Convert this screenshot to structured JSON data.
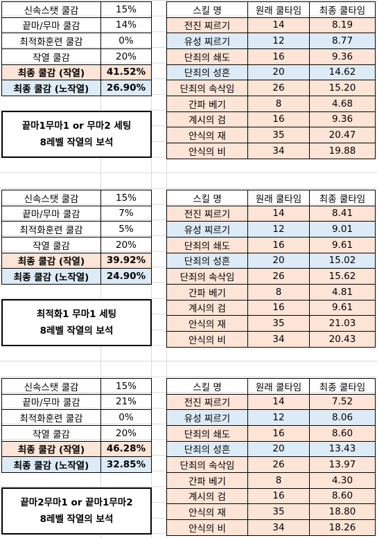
{
  "blocks": [
    {
      "stats": [
        [
          "신속스탯 쿨감",
          "15%"
        ],
        [
          "끝마/무마 쿨감",
          "14%"
        ],
        [
          "최적화훈련 쿨감",
          "0%"
        ],
        [
          "작열 쿨감",
          "20%"
        ],
        [
          "최종 쿨감 (작열)",
          "41.52%"
        ],
        [
          "최종 쿨감 (노작열)",
          "26.90%"
        ]
      ],
      "note": [
        "끝마1무마1 or 무마2 세팅",
        "8레벨 작열의 보석"
      ],
      "skills": {
        "header": [
          "스킬 명",
          "원래 쿨타임",
          "최종 쿨타임"
        ],
        "rows": [
          [
            "전진 찌르기",
            "14",
            "8.19"
          ],
          [
            "유성 찌르기",
            "12",
            "8.77"
          ],
          [
            "단죄의 쇄도",
            "16",
            "9.36"
          ],
          [
            "단죄의 성흔",
            "20",
            "14.62"
          ],
          [
            "단죄의 속삭임",
            "26",
            "15.20"
          ],
          [
            "간파 베기",
            "8",
            "4.68"
          ],
          [
            "계시의 검",
            "16",
            "9.36"
          ],
          [
            "안식의 재",
            "35",
            "20.47"
          ],
          [
            "안식의 비",
            "34",
            "19.88"
          ]
        ]
      }
    },
    {
      "stats": [
        [
          "신속스탯 쿨감",
          "15%"
        ],
        [
          "끝마/무마 쿨감",
          "7%"
        ],
        [
          "최적화훈련 쿨감",
          "5%"
        ],
        [
          "작열 쿨감",
          "20%"
        ],
        [
          "최종 쿨감 (작열)",
          "39.92%"
        ],
        [
          "최종 쿨감 (노작열)",
          "24.90%"
        ]
      ],
      "note": [
        "최적화1 무마1 세팅",
        "8레벨 작열의 보석"
      ],
      "skills": {
        "header": [
          "스킬 명",
          "원래 쿨타임",
          "최종 쿨타임"
        ],
        "rows": [
          [
            "전진 찌르기",
            "14",
            "8.41"
          ],
          [
            "유성 찌르기",
            "12",
            "9.01"
          ],
          [
            "단죄의 쇄도",
            "16",
            "9.61"
          ],
          [
            "단죄의 성흔",
            "20",
            "15.02"
          ],
          [
            "단죄의 속삭임",
            "26",
            "15.62"
          ],
          [
            "간파 베기",
            "8",
            "4.81"
          ],
          [
            "계시의 검",
            "16",
            "9.61"
          ],
          [
            "안식의 재",
            "35",
            "21.03"
          ],
          [
            "안식의 비",
            "34",
            "20.43"
          ]
        ]
      }
    },
    {
      "stats": [
        [
          "신속스탯 쿨감",
          "15%"
        ],
        [
          "끝마/무마 쿨감",
          "21%"
        ],
        [
          "최적화훈련 쿨감",
          "0%"
        ],
        [
          "작열 쿨감",
          "20%"
        ],
        [
          "최종 쿨감 (작열)",
          "46.28%"
        ],
        [
          "최종 쿨감 (노작열)",
          "32.85%"
        ]
      ],
      "note": [
        "끝마2무마1 or 끝마1무마2",
        "8레벨 작열의 보석"
      ],
      "skills": {
        "header": [
          "스킬 명",
          "원래 쿨타임",
          "최종 쿨타임"
        ],
        "rows": [
          [
            "전진 찌르기",
            "14",
            "7.52"
          ],
          [
            "유성 찌르기",
            "12",
            "8.06"
          ],
          [
            "단죄의 쇄도",
            "16",
            "8.60"
          ],
          [
            "단죄의 성흔",
            "20",
            "13.43"
          ],
          [
            "단죄의 속삭임",
            "26",
            "13.97"
          ],
          [
            "간파 베기",
            "8",
            "4.30"
          ],
          [
            "계시의 검",
            "16",
            "8.60"
          ],
          [
            "안식의 재",
            "35",
            "18.80"
          ],
          [
            "안식의 비",
            "34",
            "18.26"
          ]
        ]
      }
    }
  ]
}
